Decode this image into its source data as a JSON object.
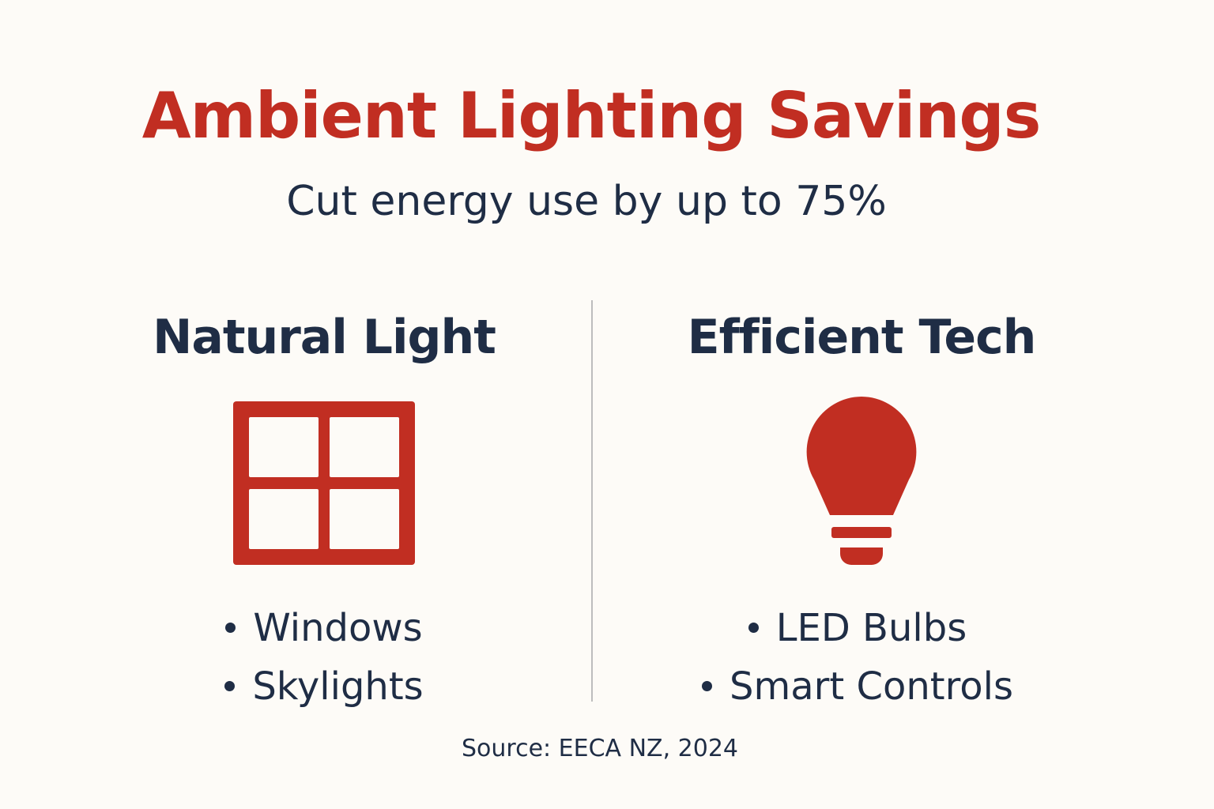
{
  "title": "Ambient Lighting Savings",
  "subtitle": "Cut energy use by up to 75%",
  "columns": [
    {
      "heading": "Natural Light",
      "items": [
        "Windows",
        "Skylights"
      ]
    },
    {
      "heading": "Efficient Tech",
      "items": [
        "LED Bulbs",
        "Smart Controls"
      ]
    }
  ],
  "source": "Source: EECA NZ, 2024"
}
